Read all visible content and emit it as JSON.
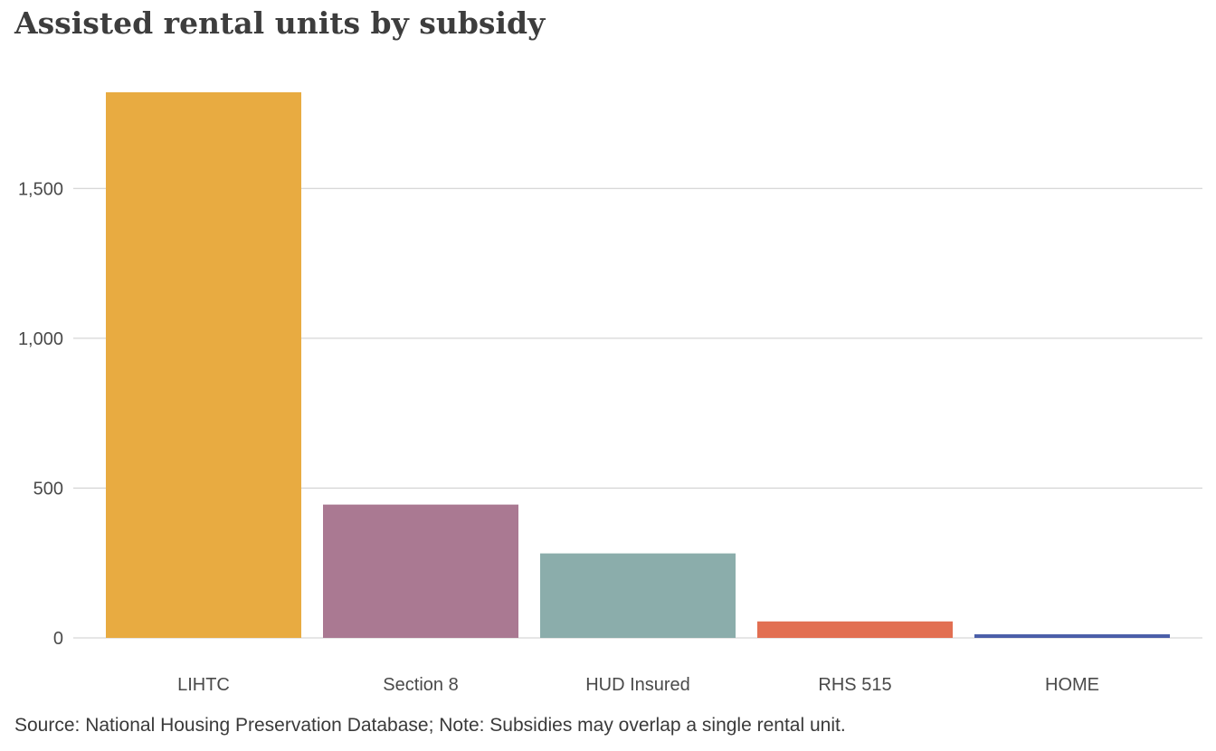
{
  "chart_data": {
    "type": "bar",
    "title": "Assisted rental units by subsidy",
    "xlabel": "",
    "ylabel": "",
    "categories": [
      "LIHTC",
      "Section 8",
      "HUD Insured",
      "RHS 515",
      "HOME"
    ],
    "values": [
      1821,
      445,
      282,
      55,
      12
    ],
    "colors": [
      "#e8ab41",
      "#aa7992",
      "#8badab",
      "#e26f52",
      "#4a5ea8"
    ],
    "ylim": [
      0,
      1821
    ],
    "yticks": [
      0,
      500,
      1000,
      1500
    ],
    "ytick_labels": [
      "0",
      "500",
      "1,000",
      "1,500"
    ],
    "grid": true,
    "legend": "none"
  },
  "footer": {
    "source_note": "Source: National Housing Preservation Database; Note:  Subsidies may overlap a single rental unit."
  }
}
